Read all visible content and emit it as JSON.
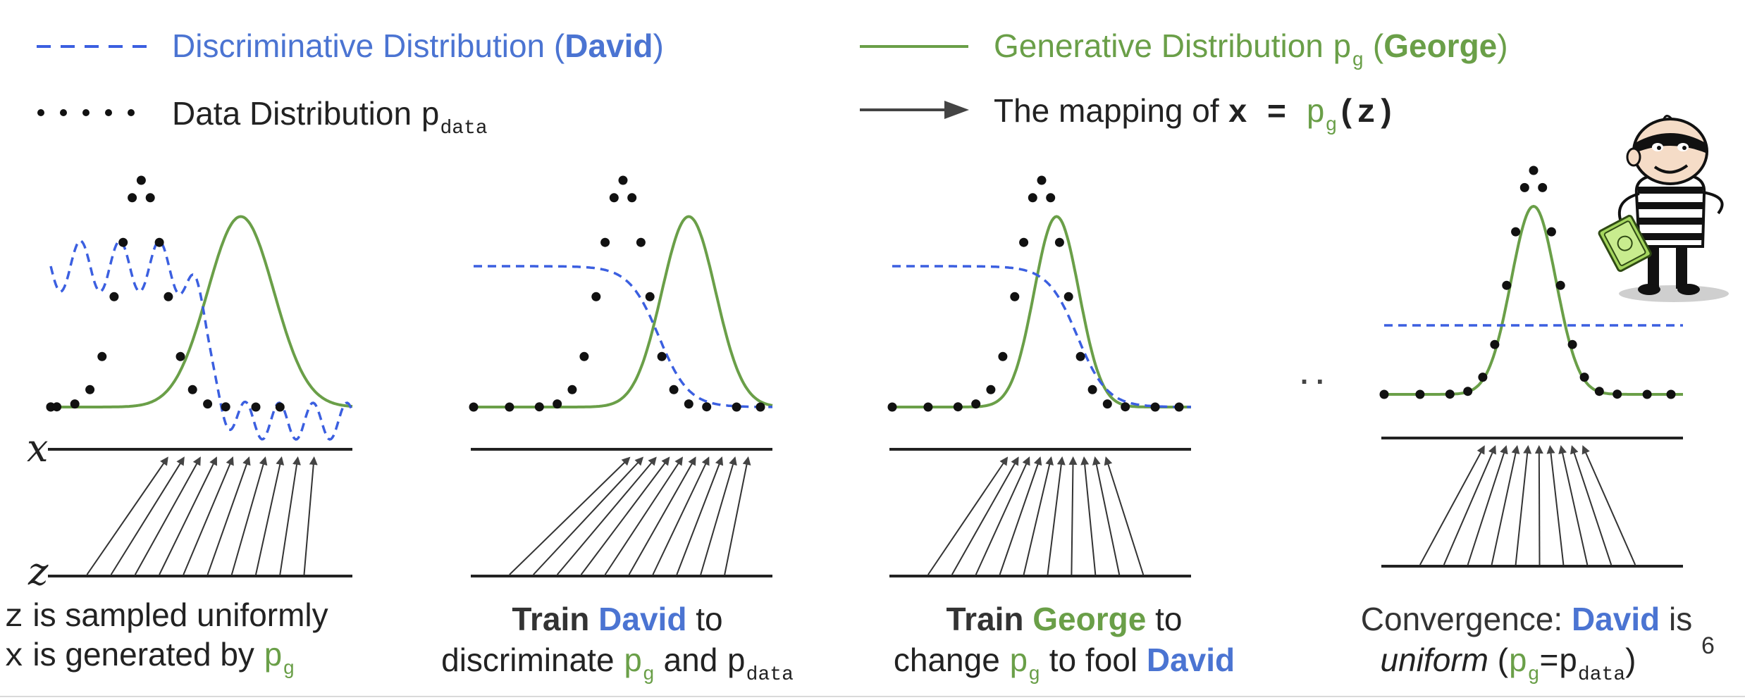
{
  "legend": {
    "discriminative_label": "Discriminative Distribution (",
    "discriminative_name": "David",
    "discriminative_close": ")",
    "data_label": "Data Distribution ",
    "data_symbol": "p",
    "data_sub": "data",
    "generative_label": "Generative Distribution ",
    "generative_symbol": "p",
    "generative_sub": "g",
    "generative_open": " (",
    "generative_name": "George",
    "generative_close": ")",
    "mapping_label": "The mapping of ",
    "mapping_x": "x",
    "mapping_eq": " = ",
    "mapping_p": "p",
    "mapping_sub": "g",
    "mapping_z": "(z)"
  },
  "axes": {
    "x_label": "x",
    "z_label": "z",
    "ellipsis": ". ."
  },
  "captions": {
    "panel1_line1_var": "z",
    "panel1_line1_text": " is sampled uniformly",
    "panel1_line2_var": "x",
    "panel1_line2_text": " is generated by ",
    "panel1_line2_p": "p",
    "panel1_line2_sub": "g",
    "panel2_train": "Train ",
    "panel2_name": "David",
    "panel2_to": " to",
    "panel2_line2_a": "discriminate ",
    "panel2_p1": "p",
    "panel2_sub1": "g",
    "panel2_and": " and ",
    "panel2_p2": "p",
    "panel2_sub2": "data",
    "panel3_train": "Train ",
    "panel3_name": "George",
    "panel3_to": " to",
    "panel3_line2_a": "change ",
    "panel3_p": "p",
    "panel3_sub": "g",
    "panel3_fool": " to fool ",
    "panel3_name2": "David",
    "panel4_conv": "Convergence: ",
    "panel4_name": "David",
    "panel4_is": " is",
    "panel4_uniform": "uniform",
    "panel4_open": " (",
    "panel4_p1": "p",
    "panel4_sub1": "g",
    "panel4_eq": "=",
    "panel4_p2": "p",
    "panel4_sub2": "data",
    "panel4_close": ")"
  },
  "page_number": "6",
  "colors": {
    "green": "#6a9f48",
    "blue": "#3b5fe0",
    "black": "#111111",
    "axis": "#222222"
  },
  "panels": [
    {
      "id": "step-1",
      "discriminator": "wavy",
      "data_mu": 0.3,
      "data_sigma": 0.075,
      "gen_mu": 0.63,
      "gen_sigma": 0.11
    },
    {
      "id": "step-2",
      "discriminator": "sigmoid",
      "data_mu": 0.5,
      "data_sigma": 0.075,
      "gen_mu": 0.72,
      "gen_sigma": 0.09
    },
    {
      "id": "step-3",
      "discriminator": "sigmoid",
      "data_mu": 0.5,
      "data_sigma": 0.075,
      "gen_mu": 0.55,
      "gen_sigma": 0.075
    },
    {
      "id": "step-4",
      "discriminator": "flat",
      "data_mu": 0.5,
      "data_sigma": 0.075,
      "gen_mu": 0.5,
      "gen_sigma": 0.075
    }
  ]
}
